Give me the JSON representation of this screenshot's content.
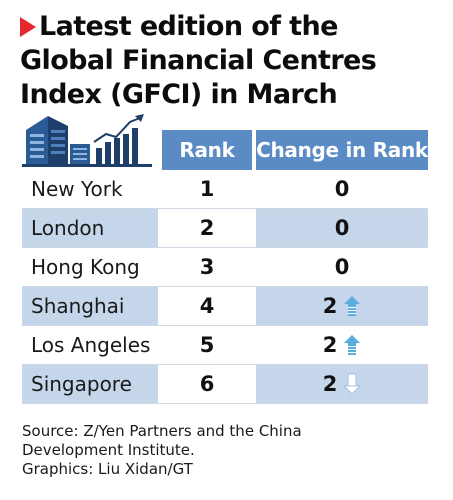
{
  "title_lines": [
    "Latest edition of the",
    "Global Financial Centres",
    "Index (GFCI) in March"
  ],
  "chart_data": {
    "type": "table",
    "columns": [
      "Rank",
      "Change in Rank"
    ],
    "rows": [
      {
        "city": "New York",
        "rank": "1",
        "change": "0",
        "direction": "none"
      },
      {
        "city": "London",
        "rank": "2",
        "change": "0",
        "direction": "none"
      },
      {
        "city": "Hong Kong",
        "rank": "3",
        "change": "0",
        "direction": "none"
      },
      {
        "city": "Shanghai",
        "rank": "4",
        "change": "2",
        "direction": "up"
      },
      {
        "city": "Los Angeles",
        "rank": "5",
        "change": "2",
        "direction": "up"
      },
      {
        "city": "Singapore",
        "rank": "6",
        "change": "2",
        "direction": "down"
      }
    ]
  },
  "footer": {
    "source_line1": "Source: Z/Yen Partners and the China",
    "source_line2": "Development Institute.",
    "graphics": "Graphics: Liu Xidan/GT"
  },
  "colors": {
    "header_blue": "#5a8bc5",
    "row_shade": "#c6d6ea",
    "accent_red": "#e5272e",
    "icon_navy": "#1f3f6b"
  }
}
